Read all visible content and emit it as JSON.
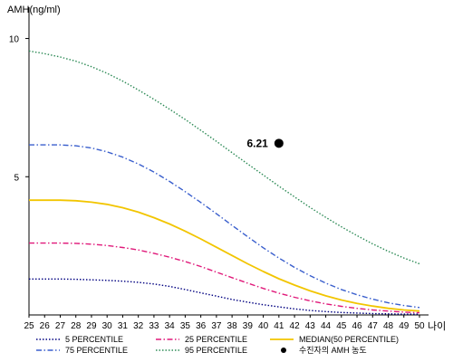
{
  "chart_data": {
    "type": "line",
    "ylabel": "AMH(ng/ml)",
    "xlabel": "나이",
    "xlim": [
      25,
      50
    ],
    "ylim": [
      0,
      11
    ],
    "yticks": [
      5,
      10
    ],
    "x": [
      25,
      26,
      27,
      28,
      29,
      30,
      31,
      32,
      33,
      34,
      35,
      36,
      37,
      38,
      39,
      40,
      41,
      42,
      43,
      44,
      45,
      46,
      47,
      48,
      49,
      50
    ],
    "series": [
      {
        "name": "5 PERCENTILE",
        "color": "#000080",
        "dash": "dotted",
        "values": [
          1.3,
          1.3,
          1.3,
          1.29,
          1.27,
          1.25,
          1.22,
          1.18,
          1.12,
          1.03,
          0.92,
          0.8,
          0.68,
          0.56,
          0.46,
          0.37,
          0.29,
          0.22,
          0.16,
          0.12,
          0.09,
          0.07,
          0.05,
          0.04,
          0.03,
          0.03
        ]
      },
      {
        "name": "25 PERCENTILE",
        "color": "#e0197a",
        "dash": "dashdot",
        "values": [
          2.6,
          2.6,
          2.6,
          2.59,
          2.56,
          2.51,
          2.44,
          2.35,
          2.23,
          2.09,
          1.93,
          1.75,
          1.55,
          1.35,
          1.15,
          0.96,
          0.79,
          0.64,
          0.51,
          0.4,
          0.31,
          0.24,
          0.18,
          0.14,
          0.1,
          0.08
        ]
      },
      {
        "name": "MEDIAN(50 PERCENTILE)",
        "color": "#f2c500",
        "dash": "solid",
        "values": [
          4.15,
          4.15,
          4.15,
          4.13,
          4.08,
          4.0,
          3.88,
          3.72,
          3.52,
          3.29,
          3.03,
          2.75,
          2.45,
          2.15,
          1.85,
          1.57,
          1.31,
          1.08,
          0.87,
          0.69,
          0.54,
          0.42,
          0.32,
          0.24,
          0.18,
          0.14
        ]
      },
      {
        "name": "75 PERCENTILE",
        "color": "#3a5fcd",
        "dash": "dashdot",
        "values": [
          6.15,
          6.15,
          6.15,
          6.12,
          6.04,
          5.9,
          5.71,
          5.46,
          5.17,
          4.83,
          4.46,
          4.07,
          3.66,
          3.24,
          2.83,
          2.43,
          2.06,
          1.72,
          1.42,
          1.15,
          0.92,
          0.73,
          0.57,
          0.44,
          0.34,
          0.27
        ]
      },
      {
        "name": "95 PERCENTILE",
        "color": "#2e8b57",
        "dash": "dotted",
        "values": [
          9.55,
          9.45,
          9.33,
          9.18,
          8.98,
          8.74,
          8.46,
          8.14,
          7.8,
          7.44,
          7.07,
          6.68,
          6.28,
          5.87,
          5.46,
          5.06,
          4.66,
          4.27,
          3.89,
          3.53,
          3.19,
          2.87,
          2.57,
          2.3,
          2.06,
          1.85
        ]
      }
    ],
    "points": [
      {
        "name": "수진자의 AMH 농도",
        "x": 41,
        "y": 6.21,
        "label": "6.21",
        "color": "#000000"
      }
    ],
    "legend_position": "bottom",
    "legend_order": [
      "5 PERCENTILE",
      "25 PERCENTILE",
      "MEDIAN(50 PERCENTILE)",
      "75 PERCENTILE",
      "95 PERCENTILE",
      "수진자의 AMH 농도"
    ],
    "grid": false
  }
}
